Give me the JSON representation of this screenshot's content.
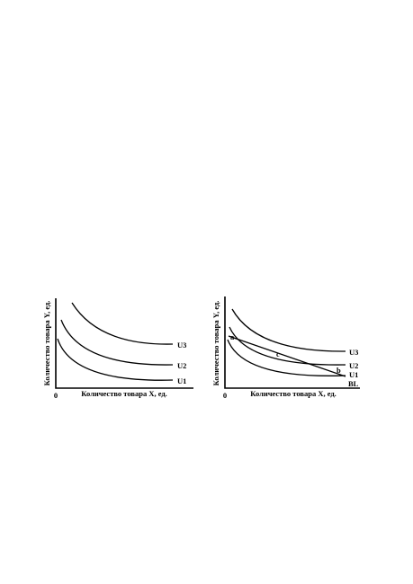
{
  "diagrams": [
    {
      "y_axis_label": "Количество товара Y, ед.",
      "x_axis_label": "Количество товара X, ед.",
      "origin": "0",
      "curves": [
        "U3",
        "U2",
        "U1"
      ]
    },
    {
      "y_axis_label": "Количество товара Y, ед.",
      "x_axis_label": "Количество товара X, ед.",
      "origin": "0",
      "curves": [
        "U3",
        "U2",
        "U1"
      ],
      "points": [
        "a",
        "c",
        "b"
      ],
      "line": "BL"
    }
  ]
}
